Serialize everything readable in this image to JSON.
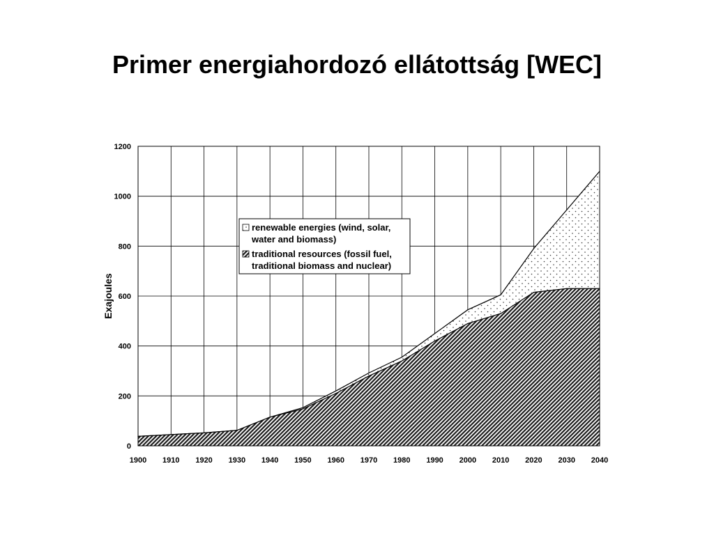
{
  "slide": {
    "title": "Primer energiahordozó ellátottság [WEC]"
  },
  "chart_data": {
    "type": "area",
    "stacked": true,
    "x": [
      1900,
      1910,
      1920,
      1930,
      1940,
      1950,
      1960,
      1970,
      1980,
      1990,
      2000,
      2010,
      2020,
      2030,
      2040
    ],
    "ylabel": "Exajoules",
    "xlabel": "",
    "ylim": [
      0,
      1200
    ],
    "xlim": [
      1900,
      2040
    ],
    "yticks": [
      0,
      200,
      400,
      600,
      800,
      1000,
      1200
    ],
    "xticks": [
      1900,
      1910,
      1920,
      1930,
      1940,
      1950,
      1960,
      1970,
      1980,
      1990,
      2000,
      2010,
      2020,
      2030,
      2040
    ],
    "grid": true,
    "legend_position": "upper-center",
    "series": [
      {
        "name": "traditional resources (fossil fuel, traditional biomass and nuclear)",
        "legend_lines": [
          "traditional resources (fossil fuel,",
          "traditional biomass and nuclear)"
        ],
        "pattern": "hatched",
        "values": [
          38,
          45,
          52,
          62,
          115,
          148,
          210,
          280,
          340,
          420,
          490,
          530,
          615,
          630,
          630
        ]
      },
      {
        "name": "renewable energies (wind, solar, water and biomass)",
        "legend_lines": [
          "renewable energies (wind, solar,",
          "water and biomass)"
        ],
        "pattern": "dotted",
        "values": [
          0,
          0,
          0,
          0,
          0,
          5,
          10,
          12,
          15,
          30,
          55,
          75,
          175,
          315,
          470
        ]
      }
    ]
  }
}
